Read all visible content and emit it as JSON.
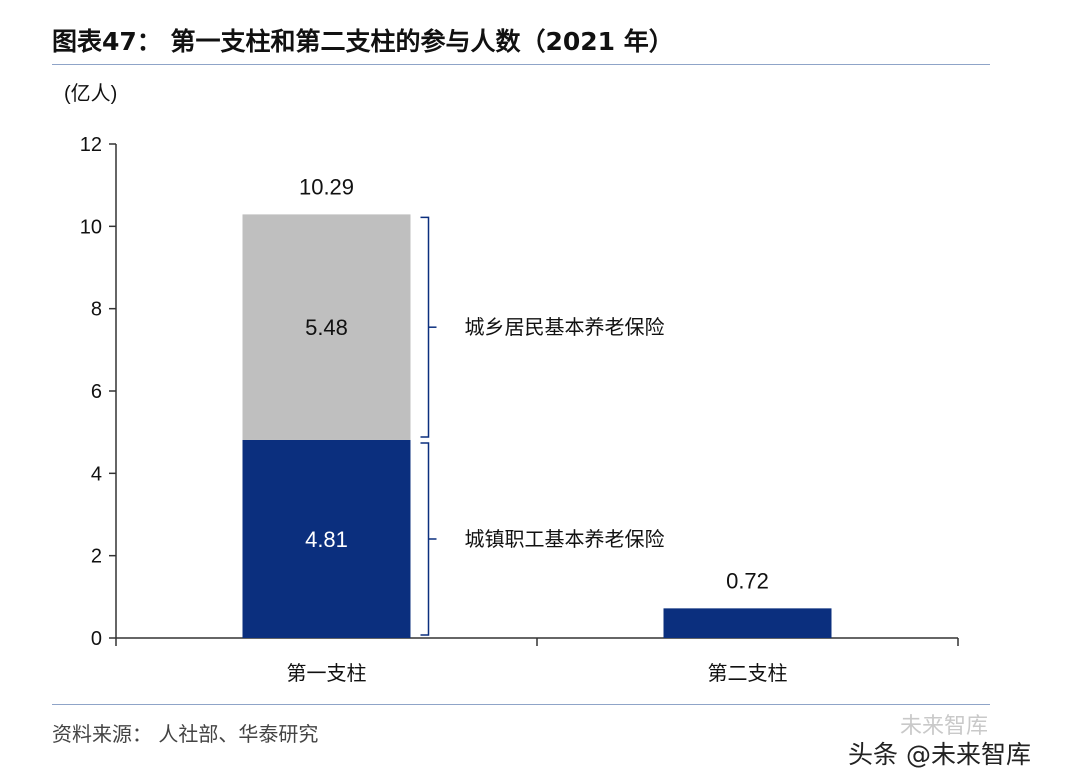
{
  "header": {
    "title": "图表47： 第一支柱和第二支柱的参与人数（2021 年）"
  },
  "footer": {
    "source": "资料来源： 人社部、华泰研究",
    "watermark_top": "未来智库",
    "watermark": "头条 @未来智库"
  },
  "colors": {
    "employee": "#0b2f7e",
    "resident": "#bfbfbf",
    "axis": "#333333"
  },
  "chart_data": {
    "type": "bar",
    "stacked": true,
    "ylabel": "(亿人)",
    "ylim": [
      0,
      12
    ],
    "yticks": [
      0,
      2,
      4,
      6,
      8,
      10,
      12
    ],
    "grid": false,
    "categories": [
      "第一支柱",
      "第二支柱"
    ],
    "series": [
      {
        "name": "城镇职工基本养老保险",
        "values": [
          4.81,
          0.72
        ],
        "color": "#0b2f7e",
        "data_labels": [
          "4.81",
          ""
        ]
      },
      {
        "name": "城乡居民基本养老保险",
        "values": [
          5.48,
          0
        ],
        "color": "#bfbfbf",
        "data_labels": [
          "5.48",
          ""
        ]
      }
    ],
    "totals": [
      10.29,
      0.72
    ],
    "total_labels": [
      "10.29",
      "0.72"
    ]
  }
}
